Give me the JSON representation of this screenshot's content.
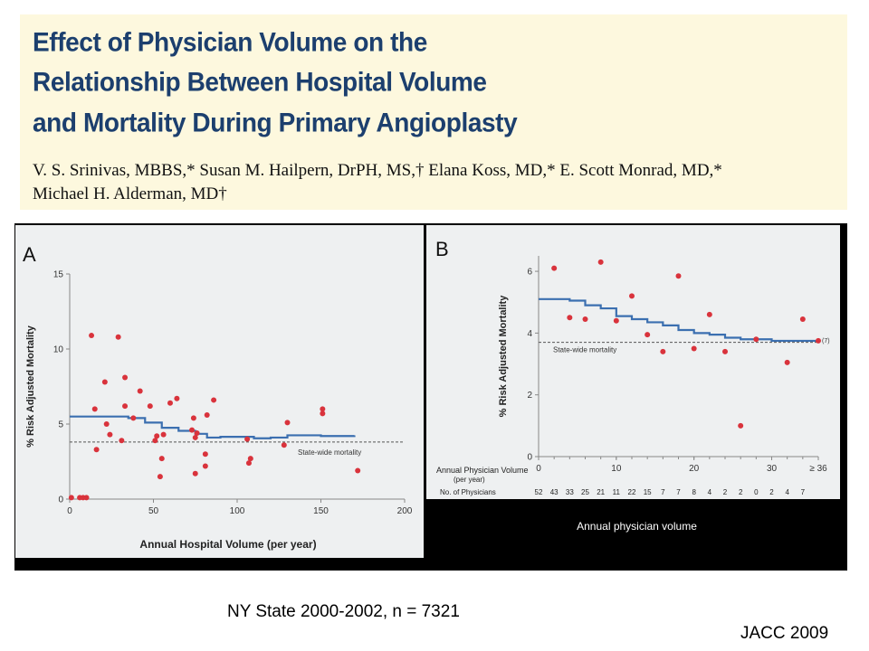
{
  "header": {
    "title_lines": [
      "Effect of Physician Volume on the",
      "Relationship Between Hospital Volume",
      "and Mortality During Primary Angioplasty"
    ],
    "author_lines": [
      "V. S. Srinivas, MBBS,* Susan M. Hailpern, DrPH, MS,† Elana Koss, MD,* E. Scott Monrad, MD,*",
      "Michael H. Alderman, MD†"
    ]
  },
  "caption_b": "Annual physician  volume",
  "footnote": "NY State 2000-2002, n = 7321",
  "citation": "JACC 2009",
  "colors": {
    "title": "#1c3f6e",
    "points": "#d9333c",
    "curve": "#3b6fb0",
    "reference": "#555555"
  },
  "chart_data": [
    {
      "panel_label": "A",
      "type": "scatter",
      "xlabel": "Annual Hospital Volume (per year)",
      "ylabel": "% Risk Adjusted Mortality",
      "xlim": [
        0,
        200
      ],
      "ylim": [
        0,
        15
      ],
      "xticks": [
        "0",
        "50",
        "100",
        "150",
        "200"
      ],
      "yticks": [
        "0",
        "5",
        "10",
        "15"
      ],
      "reference_line": {
        "y": 3.8,
        "label": "State-wide mortality"
      },
      "points": [
        [
          1,
          0.1
        ],
        [
          6,
          0.1
        ],
        [
          8,
          0.1
        ],
        [
          10,
          0.1
        ],
        [
          13,
          10.9
        ],
        [
          15,
          6.0
        ],
        [
          16,
          3.3
        ],
        [
          21,
          7.8
        ],
        [
          22,
          5.0
        ],
        [
          24,
          4.3
        ],
        [
          29,
          10.8
        ],
        [
          31,
          3.9
        ],
        [
          33,
          6.2
        ],
        [
          33,
          8.1
        ],
        [
          38,
          5.4
        ],
        [
          42,
          7.2
        ],
        [
          48,
          6.2
        ],
        [
          51,
          3.9
        ],
        [
          52,
          4.2
        ],
        [
          54,
          1.5
        ],
        [
          55,
          2.7
        ],
        [
          56,
          4.3
        ],
        [
          60,
          6.4
        ],
        [
          64,
          6.7
        ],
        [
          73,
          4.6
        ],
        [
          74,
          5.4
        ],
        [
          75,
          1.7
        ],
        [
          75,
          4.1
        ],
        [
          76,
          4.4
        ],
        [
          81,
          2.2
        ],
        [
          81,
          3.0
        ],
        [
          82,
          5.6
        ],
        [
          86,
          6.6
        ],
        [
          106,
          4.0
        ],
        [
          107,
          2.4
        ],
        [
          108,
          2.7
        ],
        [
          128,
          3.6
        ],
        [
          130,
          5.1
        ],
        [
          151,
          5.7
        ],
        [
          151,
          6.0
        ],
        [
          172,
          1.9
        ]
      ],
      "curve": [
        [
          0,
          5.5
        ],
        [
          10,
          5.5
        ],
        [
          25,
          5.5
        ],
        [
          35,
          5.4
        ],
        [
          45,
          5.1
        ],
        [
          55,
          4.75
        ],
        [
          65,
          4.55
        ],
        [
          75,
          4.35
        ],
        [
          82,
          4.1
        ],
        [
          90,
          4.15
        ],
        [
          100,
          4.15
        ],
        [
          110,
          4.05
        ],
        [
          120,
          4.1
        ],
        [
          130,
          4.25
        ],
        [
          150,
          4.2
        ],
        [
          170,
          4.25
        ]
      ]
    },
    {
      "panel_label": "B",
      "type": "scatter",
      "xlabel": "Annual Physician Volume (per year)",
      "ylabel": "% Risk Adjusted Mortality",
      "xlim": [
        0,
        36
      ],
      "ylim": [
        0,
        6.5
      ],
      "xticks": [
        "0",
        "10",
        "20",
        "30",
        "≥ 36"
      ],
      "yticks": [
        "0",
        "2",
        "4",
        "6"
      ],
      "reference_line": {
        "y": 3.7,
        "label": "State-wide mortality"
      },
      "curve_end_label": "(7)",
      "physician_counts_label": "No. of Physicians",
      "physician_counts": [
        "52",
        "43",
        "33",
        "25",
        "21",
        "11",
        "22",
        "15",
        "7",
        "7",
        "8",
        "4",
        "2",
        "2",
        "0",
        "2",
        "4",
        "7"
      ],
      "points": [
        [
          2,
          6.1
        ],
        [
          4,
          4.5
        ],
        [
          6,
          4.45
        ],
        [
          8,
          6.3
        ],
        [
          10,
          4.4
        ],
        [
          12,
          5.2
        ],
        [
          14,
          3.95
        ],
        [
          16,
          3.4
        ],
        [
          18,
          5.85
        ],
        [
          20,
          3.5
        ],
        [
          22,
          4.6
        ],
        [
          24,
          3.4
        ],
        [
          26,
          1.0
        ],
        [
          28,
          3.8
        ],
        [
          32,
          3.05
        ],
        [
          34,
          4.45
        ],
        [
          36,
          3.75
        ]
      ],
      "curve": [
        [
          0,
          5.1
        ],
        [
          4,
          5.05
        ],
        [
          6,
          4.9
        ],
        [
          8,
          4.8
        ],
        [
          10,
          4.55
        ],
        [
          12,
          4.45
        ],
        [
          14,
          4.35
        ],
        [
          16,
          4.25
        ],
        [
          18,
          4.1
        ],
        [
          20,
          4.0
        ],
        [
          22,
          3.95
        ],
        [
          24,
          3.85
        ],
        [
          26,
          3.8
        ],
        [
          30,
          3.75
        ],
        [
          36,
          3.75
        ]
      ]
    }
  ]
}
